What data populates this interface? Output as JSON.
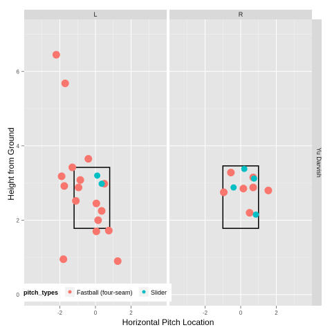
{
  "chart_data": {
    "type": "scatter",
    "facets": [
      "L",
      "R"
    ],
    "row_facet": "Yu Darvish",
    "xlabel": "Horizontal Pitch Location",
    "ylabel": "Height from Ground",
    "xlim": [
      -4,
      4
    ],
    "ylim": [
      -0.3,
      7.4
    ],
    "xticks": [
      -2,
      0,
      2
    ],
    "yticks": [
      0,
      2,
      4,
      6
    ],
    "grid": true,
    "legend_title": "pitch_types",
    "legend_position": "bottom-left",
    "series": [
      {
        "name": "Fastball (four-seam)",
        "color": "#F8766D"
      },
      {
        "name": "Slider",
        "color": "#00BFC4"
      }
    ],
    "strike_zones": {
      "L": {
        "x": [
          -1.2,
          0.8
        ],
        "y": [
          1.78,
          3.42
        ]
      },
      "R": {
        "x": [
          -1.0,
          1.0
        ],
        "y": [
          1.78,
          3.46
        ]
      }
    },
    "points": {
      "L": [
        {
          "x": -2.2,
          "y": 6.45,
          "series": "Fastball (four-seam)"
        },
        {
          "x": -1.7,
          "y": 5.68,
          "series": "Fastball (four-seam)"
        },
        {
          "x": -0.4,
          "y": 3.65,
          "series": "Fastball (four-seam)"
        },
        {
          "x": -1.3,
          "y": 3.42,
          "series": "Fastball (four-seam)"
        },
        {
          "x": -1.9,
          "y": 3.18,
          "series": "Fastball (four-seam)"
        },
        {
          "x": -0.85,
          "y": 3.08,
          "series": "Fastball (four-seam)"
        },
        {
          "x": 0.5,
          "y": 2.98,
          "series": "Fastball (four-seam)"
        },
        {
          "x": -1.75,
          "y": 2.92,
          "series": "Fastball (four-seam)"
        },
        {
          "x": -0.95,
          "y": 2.88,
          "series": "Fastball (four-seam)"
        },
        {
          "x": -1.1,
          "y": 2.52,
          "series": "Fastball (four-seam)"
        },
        {
          "x": 0.05,
          "y": 2.45,
          "series": "Fastball (four-seam)"
        },
        {
          "x": 0.35,
          "y": 2.25,
          "series": "Fastball (four-seam)"
        },
        {
          "x": 0.15,
          "y": 2.0,
          "series": "Fastball (four-seam)"
        },
        {
          "x": 0.75,
          "y": 1.72,
          "series": "Fastball (four-seam)"
        },
        {
          "x": 0.05,
          "y": 1.7,
          "series": "Fastball (four-seam)"
        },
        {
          "x": -1.8,
          "y": 0.95,
          "series": "Fastball (four-seam)"
        },
        {
          "x": 1.25,
          "y": 0.9,
          "series": "Fastball (four-seam)"
        },
        {
          "x": 0.1,
          "y": 3.2,
          "series": "Slider"
        },
        {
          "x": 0.35,
          "y": 2.98,
          "series": "Slider"
        }
      ],
      "R": [
        {
          "x": -0.55,
          "y": 3.28,
          "series": "Fastball (four-seam)"
        },
        {
          "x": 0.7,
          "y": 3.15,
          "series": "Fastball (four-seam)"
        },
        {
          "x": 0.7,
          "y": 2.88,
          "series": "Fastball (four-seam)"
        },
        {
          "x": 0.15,
          "y": 2.85,
          "series": "Fastball (four-seam)"
        },
        {
          "x": 1.55,
          "y": 2.8,
          "series": "Fastball (four-seam)"
        },
        {
          "x": -0.95,
          "y": 2.75,
          "series": "Fastball (four-seam)"
        },
        {
          "x": 0.5,
          "y": 2.2,
          "series": "Fastball (four-seam)"
        },
        {
          "x": 0.2,
          "y": 3.38,
          "series": "Slider"
        },
        {
          "x": -0.4,
          "y": 2.88,
          "series": "Slider"
        },
        {
          "x": 0.75,
          "y": 3.12,
          "series": "Slider"
        },
        {
          "x": 0.85,
          "y": 2.15,
          "series": "Slider"
        }
      ]
    }
  }
}
